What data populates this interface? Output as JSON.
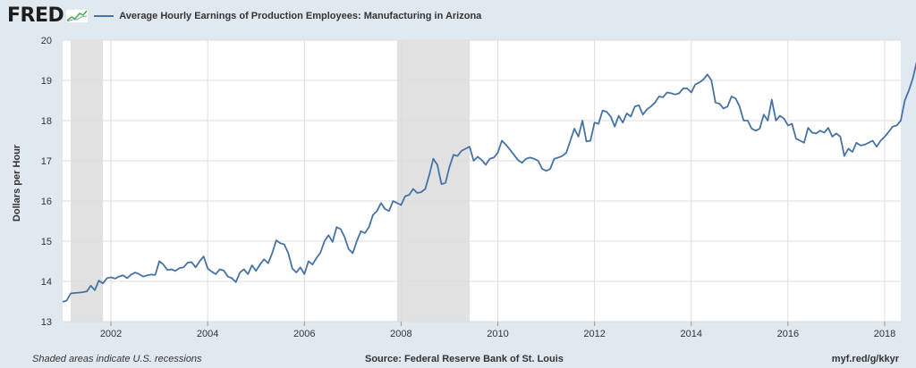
{
  "header": {
    "logo_text": "FRED",
    "series_title": "Average Hourly Earnings of Production Employees: Manufacturing in Arizona"
  },
  "footer": {
    "note": "Shaded areas indicate U.S. recessions",
    "source": "Source: Federal Reserve Bank of St. Louis",
    "shortlink": "myf.red/g/kkyr"
  },
  "colors": {
    "line": "#4572a7",
    "recession": "#e1e1e1",
    "grid": "#dddddd",
    "plot_bg": "#ffffff",
    "page_bg": "#e1e9f0"
  },
  "chart_data": {
    "type": "line",
    "title": "Average Hourly Earnings of Production Employees: Manufacturing in Arizona",
    "xlabel": "",
    "ylabel": "Dollars per Hour",
    "ylim": [
      13,
      20
    ],
    "xlim": [
      "2001-01",
      "2018-05"
    ],
    "yticks": [
      "13",
      "14",
      "15",
      "16",
      "17",
      "18",
      "19",
      "20"
    ],
    "xticks": [
      "2002",
      "2004",
      "2006",
      "2008",
      "2010",
      "2012",
      "2014",
      "2016",
      "2018"
    ],
    "grid": true,
    "recessions": [
      {
        "start": "2001-03",
        "end": "2001-11"
      },
      {
        "start": "2007-12",
        "end": "2009-06"
      }
    ],
    "series": [
      {
        "name": "Average Hourly Earnings of Production Employees: Manufacturing in Arizona",
        "start": "2001-01",
        "frequency": "monthly",
        "values": [
          13.49,
          13.52,
          13.7,
          13.71,
          13.72,
          13.73,
          13.75,
          13.89,
          13.78,
          14.02,
          13.95,
          14.08,
          14.1,
          14.07,
          14.12,
          14.15,
          14.08,
          14.17,
          14.22,
          14.18,
          14.12,
          14.15,
          14.17,
          14.16,
          14.5,
          14.42,
          14.28,
          14.3,
          14.26,
          14.33,
          14.35,
          14.46,
          14.48,
          14.35,
          14.5,
          14.62,
          14.32,
          14.24,
          14.18,
          14.3,
          14.27,
          14.12,
          14.08,
          13.98,
          14.22,
          14.3,
          14.18,
          14.4,
          14.26,
          14.42,
          14.55,
          14.45,
          14.7,
          15.02,
          14.95,
          14.92,
          14.7,
          14.32,
          14.22,
          14.35,
          14.18,
          14.5,
          14.42,
          14.58,
          14.72,
          15.0,
          15.15,
          14.98,
          15.35,
          15.3,
          15.1,
          14.8,
          14.7,
          15.0,
          15.25,
          15.2,
          15.35,
          15.65,
          15.75,
          15.95,
          15.8,
          15.75,
          16.0,
          15.95,
          15.9,
          16.12,
          16.15,
          16.3,
          16.2,
          16.22,
          16.3,
          16.65,
          17.05,
          16.9,
          16.42,
          16.45,
          16.85,
          17.15,
          17.12,
          17.25,
          17.3,
          17.35,
          17.0,
          17.1,
          17.02,
          16.9,
          17.05,
          17.08,
          17.2,
          17.5,
          17.4,
          17.28,
          17.15,
          17.02,
          16.95,
          17.05,
          17.08,
          17.05,
          17.0,
          16.8,
          16.75,
          16.8,
          17.05,
          17.08,
          17.12,
          17.2,
          17.5,
          17.8,
          17.6,
          18.0,
          17.48,
          17.5,
          17.95,
          17.92,
          18.25,
          18.22,
          18.1,
          17.85,
          18.12,
          17.95,
          18.18,
          18.1,
          18.35,
          18.38,
          18.15,
          18.28,
          18.35,
          18.45,
          18.6,
          18.58,
          18.7,
          18.68,
          18.65,
          18.68,
          18.8,
          18.8,
          18.7,
          18.9,
          18.95,
          19.02,
          19.15,
          19.0,
          18.45,
          18.42,
          18.3,
          18.35,
          18.6,
          18.55,
          18.35,
          18.0,
          18.0,
          17.8,
          17.75,
          17.8,
          18.15,
          18.0,
          18.52,
          18.0,
          18.12,
          18.05,
          17.88,
          17.92,
          17.55,
          17.5,
          17.45,
          17.82,
          17.7,
          17.68,
          17.75,
          17.7,
          17.82,
          17.6,
          17.68,
          17.6,
          17.12,
          17.3,
          17.22,
          17.45,
          17.38,
          17.4,
          17.45,
          17.5,
          17.35,
          17.5,
          17.6,
          17.72,
          17.85,
          17.88,
          18.0,
          18.5,
          18.75,
          19.05,
          19.48
        ]
      }
    ]
  }
}
